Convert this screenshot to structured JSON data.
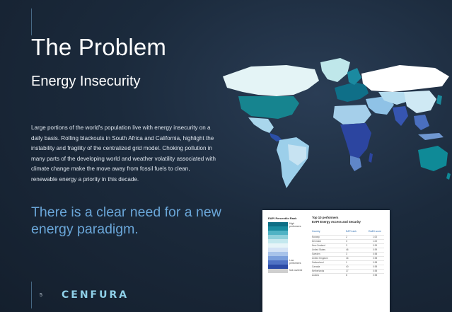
{
  "slide": {
    "title": "The Problem",
    "subtitle": "Energy Insecurity",
    "body": "Large portions of the world's population live with energy insecurity on a daily basis. Rolling blackouts in South Africa and California, highlight the instability and fragility of the centralized grid model. Choking pollution in many parts of the developing world and weather volatility associated with climate change make the move away from fossil fuels to clean, renewable energy a priority in this decade.",
    "callout": "There is a clear need for a new energy paradigm.",
    "page_number": "5",
    "logo_text": "CENFURA"
  },
  "colors": {
    "accent_blue": "#6aa6d8",
    "map_high": "#0f7f95",
    "map_low": "#2b3f9a"
  },
  "inset": {
    "legend_title": "EAPI Percentile Rank",
    "legend_high": "High performers",
    "legend_low": "Low performers",
    "legend_none": "Not covered",
    "table_title_line1": "Top 10 performers",
    "table_title_line2": "EAPI Energy Access and Security",
    "columns": [
      "Country",
      "EAPI rank",
      "EA&S score"
    ],
    "rows": [
      [
        "Norway",
        "2",
        "1.00"
      ],
      [
        "Denmark",
        "3",
        "1.00"
      ],
      [
        "New Zealand",
        "3",
        "0.99"
      ],
      [
        "United States",
        "46",
        "0.99"
      ],
      [
        "Sweden",
        "3",
        "0.98"
      ],
      [
        "United Kingdom",
        "16",
        "0.98"
      ],
      [
        "Switzerland",
        "1",
        "0.98"
      ],
      [
        "Canada",
        "40",
        "0.98"
      ],
      [
        "Netherlands",
        "17",
        "0.98"
      ],
      [
        "Austria",
        "8",
        "0.98"
      ]
    ]
  }
}
